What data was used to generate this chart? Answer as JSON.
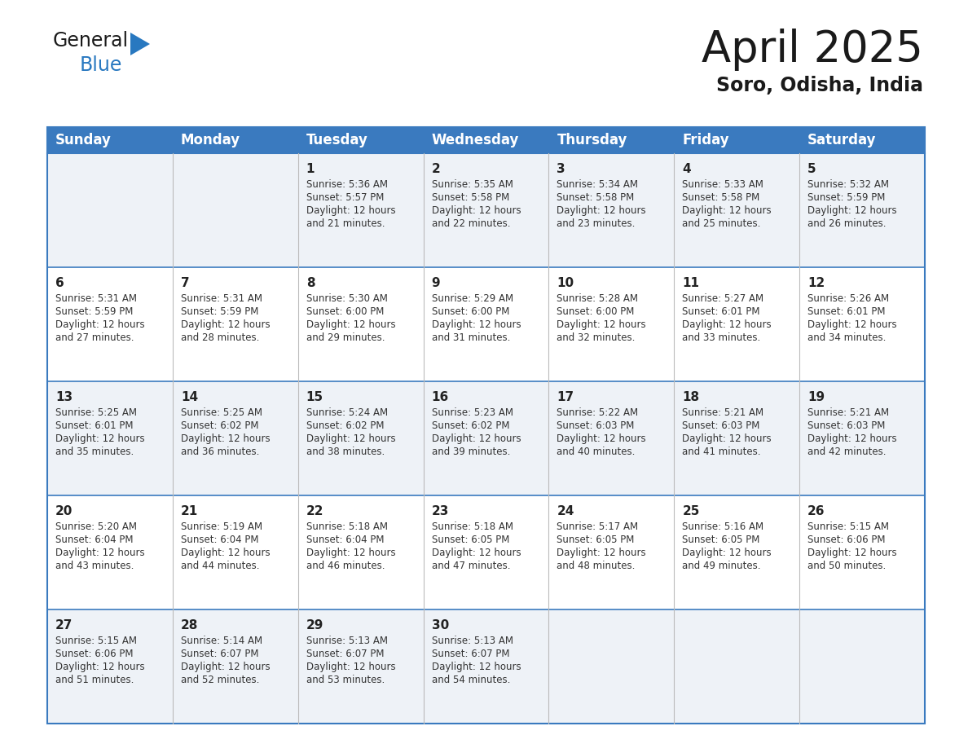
{
  "title": "April 2025",
  "subtitle": "Soro, Odisha, India",
  "header_bg": "#3a7abf",
  "header_text": "#ffffff",
  "row_bg_odd": "#eef2f7",
  "row_bg_even": "#ffffff",
  "border_color": "#3a7abf",
  "row_line_color": "#3a7abf",
  "days_of_week": [
    "Sunday",
    "Monday",
    "Tuesday",
    "Wednesday",
    "Thursday",
    "Friday",
    "Saturday"
  ],
  "calendar_data": [
    [
      {
        "day": null,
        "sunrise": null,
        "sunset": null,
        "daylight_min": null
      },
      {
        "day": null,
        "sunrise": null,
        "sunset": null,
        "daylight_min": null
      },
      {
        "day": 1,
        "sunrise": "5:36 AM",
        "sunset": "5:57 PM",
        "daylight_min": 21
      },
      {
        "day": 2,
        "sunrise": "5:35 AM",
        "sunset": "5:58 PM",
        "daylight_min": 22
      },
      {
        "day": 3,
        "sunrise": "5:34 AM",
        "sunset": "5:58 PM",
        "daylight_min": 23
      },
      {
        "day": 4,
        "sunrise": "5:33 AM",
        "sunset": "5:58 PM",
        "daylight_min": 25
      },
      {
        "day": 5,
        "sunrise": "5:32 AM",
        "sunset": "5:59 PM",
        "daylight_min": 26
      }
    ],
    [
      {
        "day": 6,
        "sunrise": "5:31 AM",
        "sunset": "5:59 PM",
        "daylight_min": 27
      },
      {
        "day": 7,
        "sunrise": "5:31 AM",
        "sunset": "5:59 PM",
        "daylight_min": 28
      },
      {
        "day": 8,
        "sunrise": "5:30 AM",
        "sunset": "6:00 PM",
        "daylight_min": 29
      },
      {
        "day": 9,
        "sunrise": "5:29 AM",
        "sunset": "6:00 PM",
        "daylight_min": 31
      },
      {
        "day": 10,
        "sunrise": "5:28 AM",
        "sunset": "6:00 PM",
        "daylight_min": 32
      },
      {
        "day": 11,
        "sunrise": "5:27 AM",
        "sunset": "6:01 PM",
        "daylight_min": 33
      },
      {
        "day": 12,
        "sunrise": "5:26 AM",
        "sunset": "6:01 PM",
        "daylight_min": 34
      }
    ],
    [
      {
        "day": 13,
        "sunrise": "5:25 AM",
        "sunset": "6:01 PM",
        "daylight_min": 35
      },
      {
        "day": 14,
        "sunrise": "5:25 AM",
        "sunset": "6:02 PM",
        "daylight_min": 36
      },
      {
        "day": 15,
        "sunrise": "5:24 AM",
        "sunset": "6:02 PM",
        "daylight_min": 38
      },
      {
        "day": 16,
        "sunrise": "5:23 AM",
        "sunset": "6:02 PM",
        "daylight_min": 39
      },
      {
        "day": 17,
        "sunrise": "5:22 AM",
        "sunset": "6:03 PM",
        "daylight_min": 40
      },
      {
        "day": 18,
        "sunrise": "5:21 AM",
        "sunset": "6:03 PM",
        "daylight_min": 41
      },
      {
        "day": 19,
        "sunrise": "5:21 AM",
        "sunset": "6:03 PM",
        "daylight_min": 42
      }
    ],
    [
      {
        "day": 20,
        "sunrise": "5:20 AM",
        "sunset": "6:04 PM",
        "daylight_min": 43
      },
      {
        "day": 21,
        "sunrise": "5:19 AM",
        "sunset": "6:04 PM",
        "daylight_min": 44
      },
      {
        "day": 22,
        "sunrise": "5:18 AM",
        "sunset": "6:04 PM",
        "daylight_min": 46
      },
      {
        "day": 23,
        "sunrise": "5:18 AM",
        "sunset": "6:05 PM",
        "daylight_min": 47
      },
      {
        "day": 24,
        "sunrise": "5:17 AM",
        "sunset": "6:05 PM",
        "daylight_min": 48
      },
      {
        "day": 25,
        "sunrise": "5:16 AM",
        "sunset": "6:05 PM",
        "daylight_min": 49
      },
      {
        "day": 26,
        "sunrise": "5:15 AM",
        "sunset": "6:06 PM",
        "daylight_min": 50
      }
    ],
    [
      {
        "day": 27,
        "sunrise": "5:15 AM",
        "sunset": "6:06 PM",
        "daylight_min": 51
      },
      {
        "day": 28,
        "sunrise": "5:14 AM",
        "sunset": "6:07 PM",
        "daylight_min": 52
      },
      {
        "day": 29,
        "sunrise": "5:13 AM",
        "sunset": "6:07 PM",
        "daylight_min": 53
      },
      {
        "day": 30,
        "sunrise": "5:13 AM",
        "sunset": "6:07 PM",
        "daylight_min": 54
      },
      {
        "day": null,
        "sunrise": null,
        "sunset": null,
        "daylight_min": null
      },
      {
        "day": null,
        "sunrise": null,
        "sunset": null,
        "daylight_min": null
      },
      {
        "day": null,
        "sunrise": null,
        "sunset": null,
        "daylight_min": null
      }
    ]
  ],
  "logo_text_general": "General",
  "logo_text_blue": "Blue",
  "logo_blue": "#2878c0",
  "logo_black": "#1a1a1a",
  "title_fontsize": 38,
  "subtitle_fontsize": 17,
  "header_fontsize": 12,
  "cell_day_fontsize": 11,
  "cell_info_fontsize": 8.5,
  "logo_general_fontsize": 17,
  "logo_blue_fontsize": 17
}
